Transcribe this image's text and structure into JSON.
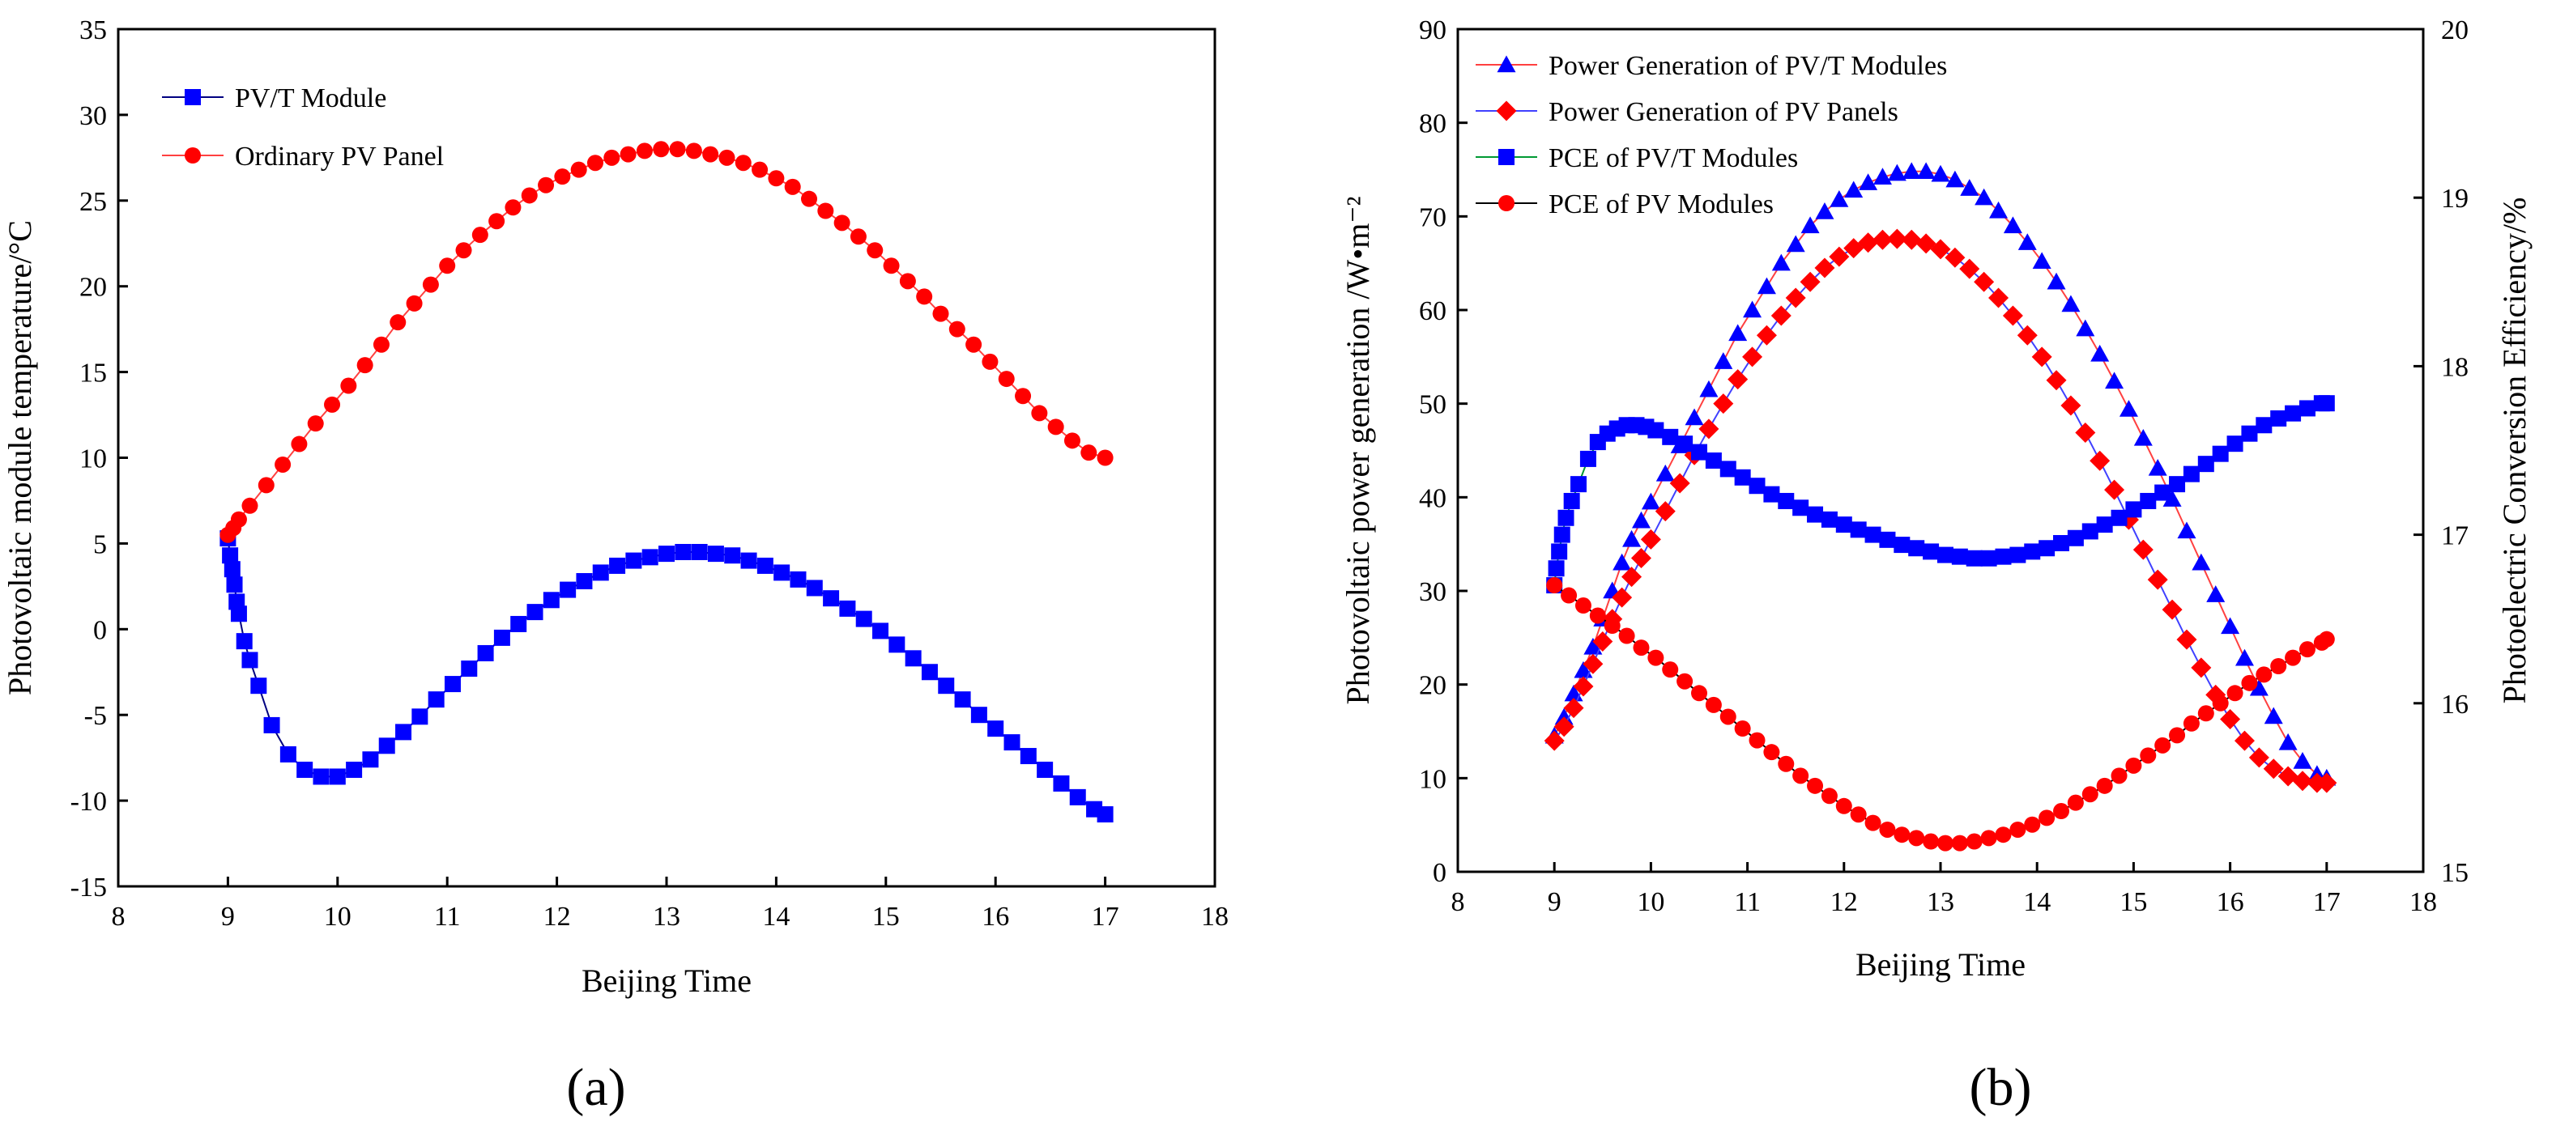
{
  "colors": {
    "pvt": "#0000ff",
    "pv": "#ff0000",
    "pvt_line": "#000080",
    "pv_line": "#ff4040",
    "pce_pvt_line": "#009933",
    "pce_pv_line": "#000000"
  },
  "panel_labels": {
    "a": "(a)",
    "b": "(b)"
  },
  "chart_data": [
    {
      "type": "scatter",
      "id": "a",
      "title": "",
      "xlabel": "Beijing Time",
      "ylabel": "Photovoltaic module temperature/°C",
      "xlim": [
        8,
        18
      ],
      "ylim": [
        -15,
        35
      ],
      "xticks": [
        8,
        9,
        10,
        11,
        12,
        13,
        14,
        15,
        16,
        17,
        18
      ],
      "yticks": [
        -15,
        -10,
        -5,
        0,
        5,
        10,
        15,
        20,
        25,
        30,
        35
      ],
      "legend_position": "top-left",
      "series": [
        {
          "name": "PV/T Module",
          "marker": "square",
          "color": "#0000ff",
          "line_color": "#000080",
          "x": [
            9.0,
            9.02,
            9.04,
            9.06,
            9.08,
            9.1,
            9.15,
            9.2,
            9.28,
            9.4,
            9.55,
            9.7,
            9.85,
            10.0,
            10.15,
            10.3,
            10.45,
            10.6,
            10.75,
            10.9,
            11.05,
            11.2,
            11.35,
            11.5,
            11.65,
            11.8,
            11.95,
            12.1,
            12.25,
            12.4,
            12.55,
            12.7,
            12.85,
            13.0,
            13.15,
            13.3,
            13.45,
            13.6,
            13.75,
            13.9,
            14.05,
            14.2,
            14.35,
            14.5,
            14.65,
            14.8,
            14.95,
            15.1,
            15.25,
            15.4,
            15.55,
            15.7,
            15.85,
            16.0,
            16.15,
            16.3,
            16.45,
            16.6,
            16.75,
            16.9,
            17.0
          ],
          "y": [
            5.3,
            4.3,
            3.5,
            2.6,
            1.6,
            0.9,
            -0.7,
            -1.8,
            -3.3,
            -5.6,
            -7.3,
            -8.2,
            -8.6,
            -8.6,
            -8.2,
            -7.6,
            -6.8,
            -6.0,
            -5.1,
            -4.1,
            -3.2,
            -2.3,
            -1.4,
            -0.5,
            0.3,
            1.0,
            1.7,
            2.3,
            2.8,
            3.3,
            3.7,
            4.0,
            4.2,
            4.4,
            4.5,
            4.5,
            4.4,
            4.3,
            4.0,
            3.7,
            3.3,
            2.9,
            2.4,
            1.8,
            1.2,
            0.6,
            -0.1,
            -0.9,
            -1.7,
            -2.5,
            -3.3,
            -4.1,
            -5.0,
            -5.8,
            -6.6,
            -7.4,
            -8.2,
            -9.0,
            -9.8,
            -10.5,
            -10.8
          ]
        },
        {
          "name": "Ordinary PV Panel",
          "marker": "circle",
          "color": "#ff0000",
          "line_color": "#ff4040",
          "x": [
            9.0,
            9.05,
            9.1,
            9.2,
            9.35,
            9.5,
            9.65,
            9.8,
            9.95,
            10.1,
            10.25,
            10.4,
            10.55,
            10.7,
            10.85,
            11.0,
            11.15,
            11.3,
            11.45,
            11.6,
            11.75,
            11.9,
            12.05,
            12.2,
            12.35,
            12.5,
            12.65,
            12.8,
            12.95,
            13.1,
            13.25,
            13.4,
            13.55,
            13.7,
            13.85,
            14.0,
            14.15,
            14.3,
            14.45,
            14.6,
            14.75,
            14.9,
            15.05,
            15.2,
            15.35,
            15.5,
            15.65,
            15.8,
            15.95,
            16.1,
            16.25,
            16.4,
            16.55,
            16.7,
            16.85,
            17.0
          ],
          "y": [
            5.5,
            5.9,
            6.4,
            7.2,
            8.4,
            9.6,
            10.8,
            12.0,
            13.1,
            14.2,
            15.4,
            16.6,
            17.9,
            19.0,
            20.1,
            21.2,
            22.1,
            23.0,
            23.8,
            24.6,
            25.3,
            25.9,
            26.4,
            26.8,
            27.2,
            27.5,
            27.7,
            27.9,
            28.0,
            28.0,
            27.9,
            27.7,
            27.5,
            27.2,
            26.8,
            26.3,
            25.8,
            25.1,
            24.4,
            23.7,
            22.9,
            22.1,
            21.2,
            20.3,
            19.4,
            18.4,
            17.5,
            16.6,
            15.6,
            14.6,
            13.6,
            12.6,
            11.8,
            11.0,
            10.3,
            10.0
          ]
        }
      ]
    },
    {
      "type": "scatter",
      "id": "b",
      "title": "",
      "xlabel": "Beijing Time",
      "ylabel": "Photovoltaic power generation /W•m⁻²",
      "y2label": "Photoelectric Conversion Efficiency/%",
      "xlim": [
        8,
        18
      ],
      "ylim": [
        0,
        90
      ],
      "y2lim": [
        15,
        20
      ],
      "xticks": [
        8,
        9,
        10,
        11,
        12,
        13,
        14,
        15,
        16,
        17,
        18
      ],
      "yticks": [
        0,
        10,
        20,
        30,
        40,
        50,
        60,
        70,
        80,
        90
      ],
      "y2ticks": [
        15,
        16,
        17,
        18,
        19,
        20
      ],
      "legend_position": "top-left",
      "series": [
        {
          "name": "Power Generation of PV/T Modules",
          "marker": "triangle",
          "color": "#0000ff",
          "line_color": "#ff4040",
          "axis": "left",
          "x": [
            9.0,
            9.1,
            9.2,
            9.3,
            9.4,
            9.5,
            9.6,
            9.7,
            9.8,
            9.9,
            10.0,
            10.15,
            10.3,
            10.45,
            10.6,
            10.75,
            10.9,
            11.05,
            11.2,
            11.35,
            11.5,
            11.65,
            11.8,
            11.95,
            12.1,
            12.25,
            12.4,
            12.55,
            12.7,
            12.85,
            13.0,
            13.15,
            13.3,
            13.45,
            13.6,
            13.75,
            13.9,
            14.05,
            14.2,
            14.35,
            14.5,
            14.65,
            14.8,
            14.95,
            15.1,
            15.25,
            15.4,
            15.55,
            15.7,
            15.85,
            16.0,
            16.15,
            16.3,
            16.45,
            16.6,
            16.75,
            16.9,
            17.0
          ],
          "y": [
            14.5,
            16.5,
            19.0,
            21.5,
            24.0,
            27.0,
            30.0,
            33.0,
            35.5,
            37.5,
            39.5,
            42.5,
            45.5,
            48.5,
            51.5,
            54.5,
            57.5,
            60.0,
            62.5,
            65.0,
            67.0,
            69.0,
            70.5,
            71.8,
            72.8,
            73.6,
            74.2,
            74.6,
            74.8,
            74.8,
            74.5,
            73.9,
            73.0,
            72.0,
            70.6,
            69.0,
            67.2,
            65.2,
            63.0,
            60.6,
            58.0,
            55.3,
            52.4,
            49.4,
            46.3,
            43.1,
            39.8,
            36.4,
            33.0,
            29.6,
            26.2,
            22.8,
            19.6,
            16.6,
            13.8,
            11.8,
            10.4,
            10.0
          ]
        },
        {
          "name": "Power Generation of PV Panels",
          "marker": "diamond",
          "color": "#ff0000",
          "line_color": "#4040ff",
          "axis": "left",
          "x": [
            9.0,
            9.1,
            9.2,
            9.3,
            9.4,
            9.5,
            9.6,
            9.7,
            9.8,
            9.9,
            10.0,
            10.15,
            10.3,
            10.45,
            10.6,
            10.75,
            10.9,
            11.05,
            11.2,
            11.35,
            11.5,
            11.65,
            11.8,
            11.95,
            12.1,
            12.25,
            12.4,
            12.55,
            12.7,
            12.85,
            13.0,
            13.15,
            13.3,
            13.45,
            13.6,
            13.75,
            13.9,
            14.05,
            14.2,
            14.35,
            14.5,
            14.65,
            14.8,
            14.95,
            15.1,
            15.25,
            15.4,
            15.55,
            15.7,
            15.85,
            16.0,
            16.15,
            16.3,
            16.45,
            16.6,
            16.75,
            16.9,
            17.0
          ],
          "y": [
            14.0,
            15.5,
            17.5,
            19.8,
            22.2,
            24.6,
            27.0,
            29.3,
            31.5,
            33.5,
            35.5,
            38.5,
            41.5,
            44.5,
            47.3,
            50.0,
            52.6,
            55.0,
            57.3,
            59.4,
            61.3,
            63.0,
            64.5,
            65.7,
            66.6,
            67.2,
            67.5,
            67.6,
            67.5,
            67.1,
            66.5,
            65.6,
            64.4,
            63.0,
            61.3,
            59.4,
            57.3,
            55.0,
            52.5,
            49.8,
            46.9,
            43.9,
            40.8,
            37.6,
            34.4,
            31.2,
            28.0,
            24.8,
            21.8,
            18.9,
            16.3,
            14.0,
            12.2,
            11.0,
            10.2,
            9.7,
            9.5,
            9.5
          ]
        },
        {
          "name": "PCE of PV/T Modules",
          "marker": "square",
          "color": "#0000ff",
          "line_color": "#009933",
          "axis": "right",
          "x": [
            9.0,
            9.02,
            9.05,
            9.08,
            9.12,
            9.18,
            9.25,
            9.35,
            9.45,
            9.55,
            9.65,
            9.75,
            9.85,
            9.95,
            10.05,
            10.2,
            10.35,
            10.5,
            10.65,
            10.8,
            10.95,
            11.1,
            11.25,
            11.4,
            11.55,
            11.7,
            11.85,
            12.0,
            12.15,
            12.3,
            12.45,
            12.6,
            12.75,
            12.9,
            13.05,
            13.2,
            13.35,
            13.5,
            13.65,
            13.8,
            13.95,
            14.1,
            14.25,
            14.4,
            14.55,
            14.7,
            14.85,
            15.0,
            15.15,
            15.3,
            15.45,
            15.6,
            15.75,
            15.9,
            16.05,
            16.2,
            16.35,
            16.5,
            16.65,
            16.8,
            16.95,
            17.0
          ],
          "y": [
            16.7,
            16.8,
            16.9,
            17.0,
            17.1,
            17.2,
            17.3,
            17.45,
            17.55,
            17.6,
            17.63,
            17.65,
            17.65,
            17.64,
            17.62,
            17.58,
            17.54,
            17.49,
            17.44,
            17.39,
            17.34,
            17.29,
            17.24,
            17.2,
            17.16,
            17.12,
            17.09,
            17.06,
            17.03,
            17.0,
            16.97,
            16.94,
            16.92,
            16.9,
            16.88,
            16.87,
            16.86,
            16.86,
            16.87,
            16.88,
            16.9,
            16.92,
            16.95,
            16.98,
            17.02,
            17.06,
            17.1,
            17.15,
            17.2,
            17.25,
            17.3,
            17.36,
            17.42,
            17.48,
            17.54,
            17.6,
            17.65,
            17.69,
            17.72,
            17.75,
            17.78,
            17.78
          ]
        },
        {
          "name": "PCE of PV Modules",
          "marker": "circle",
          "color": "#ff0000",
          "line_color": "#000000",
          "axis": "right",
          "x": [
            9.0,
            9.15,
            9.3,
            9.45,
            9.6,
            9.75,
            9.9,
            10.05,
            10.2,
            10.35,
            10.5,
            10.65,
            10.8,
            10.95,
            11.1,
            11.25,
            11.4,
            11.55,
            11.7,
            11.85,
            12.0,
            12.15,
            12.3,
            12.45,
            12.6,
            12.75,
            12.9,
            13.05,
            13.2,
            13.35,
            13.5,
            13.65,
            13.8,
            13.95,
            14.1,
            14.25,
            14.4,
            14.55,
            14.7,
            14.85,
            15.0,
            15.15,
            15.3,
            15.45,
            15.6,
            15.75,
            15.9,
            16.05,
            16.2,
            16.35,
            16.5,
            16.65,
            16.8,
            16.95,
            17.0
          ],
          "y": [
            16.7,
            16.64,
            16.58,
            16.52,
            16.46,
            16.4,
            16.33,
            16.27,
            16.2,
            16.13,
            16.06,
            15.99,
            15.92,
            15.85,
            15.78,
            15.71,
            15.64,
            15.57,
            15.51,
            15.45,
            15.39,
            15.34,
            15.29,
            15.25,
            15.22,
            15.2,
            15.18,
            15.17,
            15.17,
            15.18,
            15.2,
            15.22,
            15.25,
            15.28,
            15.32,
            15.36,
            15.41,
            15.46,
            15.51,
            15.57,
            15.63,
            15.69,
            15.75,
            15.81,
            15.88,
            15.94,
            16.0,
            16.06,
            16.12,
            16.17,
            16.22,
            16.27,
            16.32,
            16.36,
            16.38
          ]
        }
      ]
    }
  ]
}
